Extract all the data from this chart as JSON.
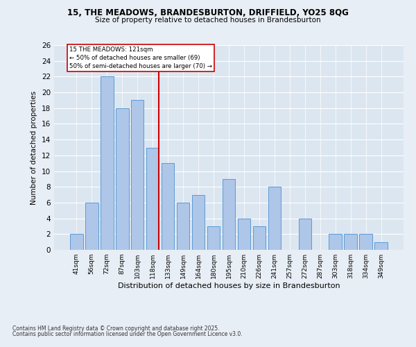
{
  "title1": "15, THE MEADOWS, BRANDESBURTON, DRIFFIELD, YO25 8QG",
  "title2": "Size of property relative to detached houses in Brandesburton",
  "xlabel": "Distribution of detached houses by size in Brandesburton",
  "ylabel": "Number of detached properties",
  "footer1": "Contains HM Land Registry data © Crown copyright and database right 2025.",
  "footer2": "Contains public sector information licensed under the Open Government Licence v3.0.",
  "categories": [
    "41sqm",
    "56sqm",
    "72sqm",
    "87sqm",
    "103sqm",
    "118sqm",
    "133sqm",
    "149sqm",
    "164sqm",
    "180sqm",
    "195sqm",
    "210sqm",
    "226sqm",
    "241sqm",
    "257sqm",
    "272sqm",
    "287sqm",
    "303sqm",
    "318sqm",
    "334sqm",
    "349sqm"
  ],
  "values": [
    2,
    6,
    22,
    18,
    19,
    13,
    11,
    6,
    7,
    3,
    9,
    4,
    3,
    8,
    0,
    4,
    0,
    2,
    2,
    2,
    1
  ],
  "bar_color": "#aec6e8",
  "bar_edgecolor": "#5b9bd5",
  "highlight_index": 5,
  "highlight_color": "#cc0000",
  "ylim": [
    0,
    26
  ],
  "yticks": [
    0,
    2,
    4,
    6,
    8,
    10,
    12,
    14,
    16,
    18,
    20,
    22,
    24,
    26
  ],
  "annotation_text": "15 THE MEADOWS: 121sqm\n← 50% of detached houses are smaller (69)\n50% of semi-detached houses are larger (70) →",
  "bg_color": "#e8eef5",
  "plot_bg_color": "#dce6f0"
}
